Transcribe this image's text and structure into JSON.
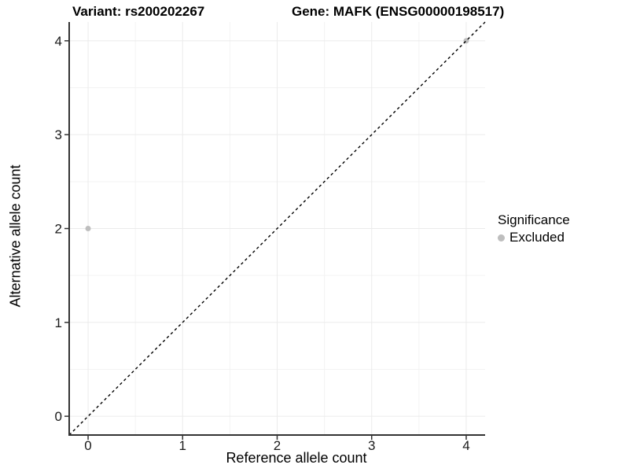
{
  "chart_data": {
    "type": "scatter",
    "title_variant": "Variant: rs200202267",
    "title_gene": "Gene: MAFK (ENSG00000198517)",
    "xlabel": "Reference allele count",
    "ylabel": "Alternative allele count",
    "xlim": [
      -0.2,
      4.2
    ],
    "ylim": [
      -0.2,
      4.2
    ],
    "x_ticks": [
      0,
      1,
      2,
      3,
      4
    ],
    "y_ticks": [
      0,
      1,
      2,
      3,
      4
    ],
    "x_minor": [
      0.5,
      1.5,
      2.5,
      3.5
    ],
    "y_minor": [
      0.5,
      1.5,
      2.5,
      3.5
    ],
    "grid": true,
    "points": [
      {
        "x": 0,
        "y": 2,
        "series": "Excluded"
      },
      {
        "x": 4,
        "y": 4,
        "series": "Excluded"
      }
    ],
    "reference_line": {
      "style": "dashed",
      "from": [
        -0.2,
        -0.2
      ],
      "to": [
        4.2,
        4.2
      ],
      "color": "#000000"
    },
    "series_colors": {
      "Excluded": "#bebebe"
    },
    "style_colors": {
      "grid_major": "#ebebeb",
      "grid_minor": "#f3f3f3",
      "axis_line": "#333333",
      "tick_mark": "#333333",
      "point": "#bebebe"
    },
    "legend": {
      "title": "Significance",
      "position": "right",
      "items": [
        {
          "label": "Excluded",
          "color": "#bebebe"
        }
      ]
    }
  }
}
